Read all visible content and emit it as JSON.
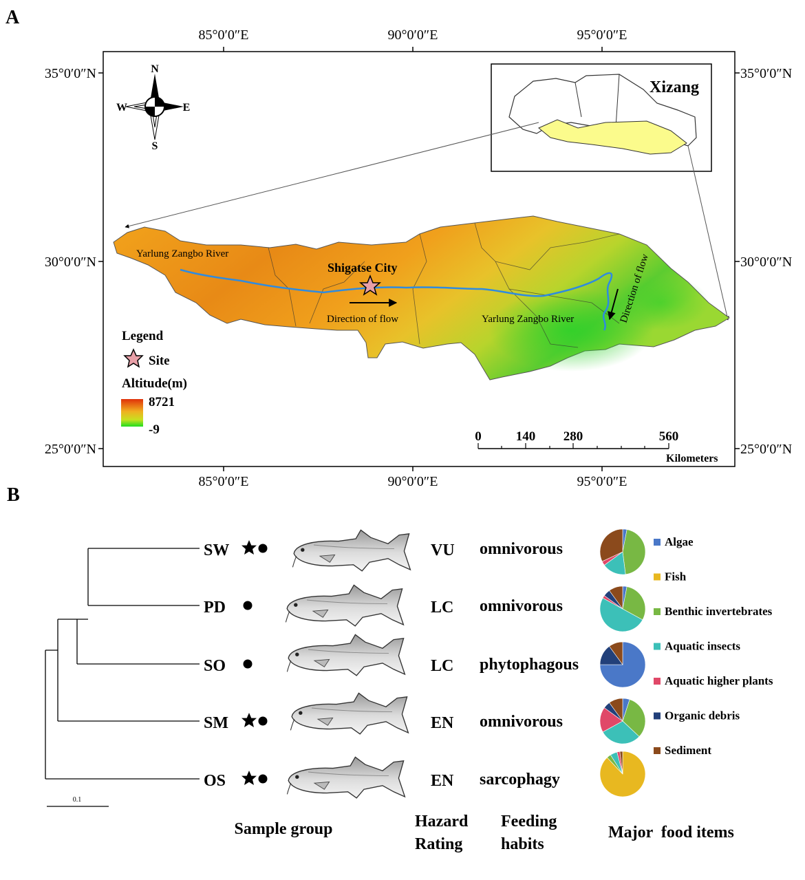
{
  "panel_a": {
    "label": "A",
    "lon_ticks": [
      "85°0′0″E",
      "90°0′0″E",
      "95°0′0″E"
    ],
    "lat_ticks": [
      "35°0′0″N",
      "30°0′0″N",
      "25°0′0″N"
    ],
    "compass": {
      "n": "N",
      "s": "S",
      "e": "E",
      "w": "W"
    },
    "inset_title": "Xizang",
    "river_label_west": "Yarlung Zangbo River",
    "river_label_east": "Yarlung Zangbo River",
    "city_label": "Shigatse City",
    "flow_label_h": "Direction of flow",
    "flow_label_v": "Direction of flow",
    "legend": {
      "title": "Legend",
      "site_label": "Site",
      "altitude_title": "Altitude(m)",
      "altitude_max": "8721",
      "altitude_min": "-9"
    },
    "scale_bar": {
      "ticks": [
        "0",
        "140",
        "280",
        "560"
      ],
      "unit": "Kilometers"
    },
    "colors": {
      "high": "#e0440c",
      "mid": "#f0c020",
      "low": "#22cc22",
      "river": "#2e8be0",
      "inset_fill": "#fbfb8c"
    }
  },
  "panel_b": {
    "label": "B",
    "scale_label": "0.1",
    "species": [
      {
        "code": "SW",
        "star": true,
        "rating": "VU",
        "habit": "omnivorous",
        "diet": [
          3,
          0,
          45,
          17,
          3,
          0,
          32
        ]
      },
      {
        "code": "PD",
        "star": false,
        "rating": "LC",
        "habit": "omnivorous",
        "diet": [
          3,
          0,
          30,
          50,
          2,
          5,
          10
        ]
      },
      {
        "code": "SO",
        "star": false,
        "rating": "LC",
        "habit": "phytophagous",
        "diet": [
          75,
          0,
          0,
          0,
          0,
          15,
          10
        ]
      },
      {
        "code": "SM",
        "star": true,
        "rating": "EN",
        "habit": "omnivorous",
        "diet": [
          5,
          0,
          32,
          30,
          18,
          5,
          10
        ]
      },
      {
        "code": "OS",
        "star": true,
        "rating": "EN",
        "habit": "sarcophagy",
        "diet": [
          0,
          88,
          3,
          5,
          2,
          0,
          2
        ]
      }
    ],
    "food_items": [
      {
        "name": "Algae",
        "color": "#4a78c8"
      },
      {
        "name": "Fish",
        "color": "#e8b820"
      },
      {
        "name": "Benthic invertebrates",
        "color": "#78b844"
      },
      {
        "name": "Aquatic insects",
        "color": "#3cc0b8"
      },
      {
        "name": "Aquatic higher plants",
        "color": "#e04868"
      },
      {
        "name": "Organic debris",
        "color": "#22407a"
      },
      {
        "name": "Sediment",
        "color": "#8b4a1c"
      }
    ],
    "columns": {
      "sample_group": "Sample group",
      "hazard_line1": "Hazard",
      "hazard_line2": "Rating",
      "feeding_line1": "Feeding",
      "feeding_line2": "habits",
      "food": "Major  food items"
    }
  }
}
